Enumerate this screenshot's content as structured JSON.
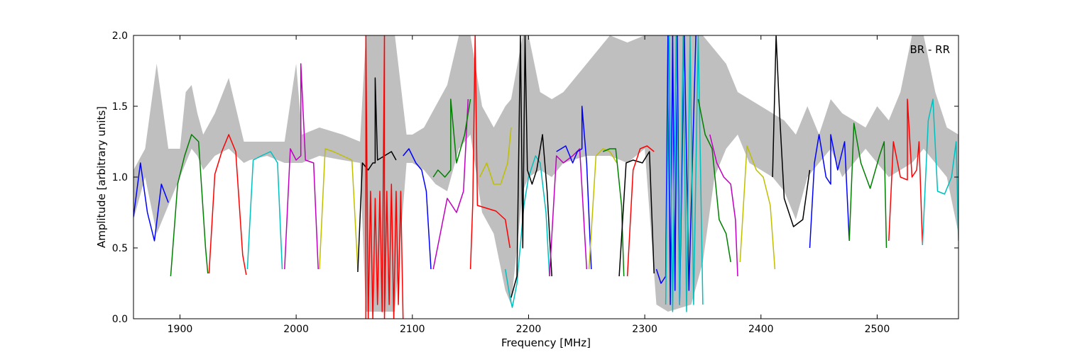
{
  "chart_data": {
    "type": "line",
    "title": "",
    "annotation": "BR - RR",
    "xlabel": "Frequency [MHz]",
    "ylabel": "Amplitude [arbitrary units]",
    "xlim": [
      1860,
      2570
    ],
    "ylim": [
      0.0,
      2.0
    ],
    "xticks": [
      1900,
      2000,
      2100,
      2200,
      2300,
      2400,
      2500
    ],
    "yticks": [
      0.0,
      0.5,
      1.0,
      1.5,
      2.0
    ],
    "xtick_labels": [
      "1900",
      "2000",
      "2100",
      "2200",
      "2300",
      "2400",
      "2500"
    ],
    "ytick_labels": [
      "0.0",
      "0.5",
      "1.0",
      "1.5",
      "2.0"
    ],
    "grid": false,
    "colors": {
      "envelope": "#bfbfbf",
      "palette": [
        "#0000ff",
        "#008000",
        "#ff0000",
        "#00bfbf",
        "#bf00bf",
        "#bfbf00",
        "#000000"
      ]
    },
    "envelope": {
      "x": [
        1860,
        1870,
        1880,
        1890,
        1900,
        1905,
        1910,
        1915,
        1920,
        1930,
        1942,
        1955,
        1960,
        1975,
        1990,
        2000,
        2005,
        2020,
        2040,
        2055,
        2060,
        2075,
        2085,
        2095,
        2100,
        2110,
        2120,
        2130,
        2140,
        2150,
        2160,
        2170,
        2180,
        2185,
        2195,
        2200,
        2210,
        2220,
        2230,
        2250,
        2270,
        2285,
        2300,
        2310,
        2320,
        2340,
        2350,
        2360,
        2370,
        2380,
        2390,
        2400,
        2410,
        2420,
        2430,
        2440,
        2450,
        2460,
        2470,
        2480,
        2490,
        2500,
        2510,
        2520,
        2530,
        2540,
        2550,
        2560,
        2570
      ],
      "lower": [
        0.7,
        1.0,
        0.6,
        0.8,
        1.0,
        1.1,
        1.2,
        1.15,
        1.05,
        1.15,
        1.2,
        1.1,
        1.12,
        1.15,
        1.1,
        1.1,
        1.1,
        1.15,
        1.12,
        1.1,
        0.05,
        0.05,
        0.05,
        1.1,
        1.1,
        1.05,
        0.95,
        0.9,
        1.2,
        1.3,
        0.75,
        0.6,
        0.2,
        0.1,
        0.9,
        1.0,
        1.05,
        1.0,
        1.1,
        1.15,
        1.15,
        1.1,
        1.2,
        0.1,
        0.05,
        0.1,
        0.4,
        1.0,
        1.2,
        1.3,
        1.1,
        1.05,
        1.0,
        0.9,
        0.7,
        1.0,
        1.1,
        1.2,
        1.0,
        1.1,
        1.2,
        1.1,
        1.0,
        1.05,
        1.1,
        1.2,
        1.1,
        1.0,
        0.6
      ],
      "upper": [
        1.05,
        1.2,
        1.8,
        1.2,
        1.2,
        1.6,
        1.65,
        1.45,
        1.3,
        1.45,
        1.7,
        1.25,
        1.25,
        1.25,
        1.25,
        1.8,
        1.3,
        1.35,
        1.3,
        1.25,
        2.0,
        2.0,
        2.0,
        1.3,
        1.3,
        1.35,
        1.5,
        1.65,
        2.0,
        2.0,
        1.5,
        1.35,
        1.5,
        1.55,
        2.0,
        2.0,
        1.6,
        1.55,
        1.6,
        1.8,
        2.0,
        1.95,
        2.0,
        2.0,
        2.0,
        2.0,
        2.0,
        1.9,
        1.8,
        1.6,
        1.55,
        1.5,
        1.45,
        1.4,
        1.3,
        1.5,
        1.3,
        1.55,
        1.45,
        1.4,
        1.35,
        1.5,
        1.4,
        1.6,
        2.0,
        2.0,
        1.6,
        1.35,
        1.3
      ]
    },
    "series": [
      {
        "color": "#0000ff",
        "x": [
          1860,
          1866,
          1872,
          1878,
          1884,
          1890
        ],
        "y": [
          0.72,
          1.1,
          0.75,
          0.55,
          0.95,
          0.82
        ]
      },
      {
        "color": "#008000",
        "x": [
          1892,
          1898,
          1904,
          1910,
          1916,
          1922,
          1924
        ],
        "y": [
          0.3,
          0.95,
          1.15,
          1.3,
          1.25,
          0.5,
          0.32
        ]
      },
      {
        "color": "#ff0000",
        "x": [
          1925,
          1930,
          1936,
          1942,
          1948,
          1954,
          1957
        ],
        "y": [
          0.32,
          1.02,
          1.18,
          1.3,
          1.18,
          0.45,
          0.31
        ]
      },
      {
        "color": "#00bfbf",
        "x": [
          1958,
          1963,
          1970,
          1978,
          1984,
          1988
        ],
        "y": [
          0.35,
          1.12,
          1.15,
          1.18,
          1.1,
          0.35
        ]
      },
      {
        "color": "#bf00bf",
        "x": [
          1990,
          1995,
          2000,
          2004,
          2004,
          2008,
          2015,
          2019
        ],
        "y": [
          0.35,
          1.2,
          1.12,
          1.15,
          1.8,
          1.12,
          1.1,
          0.35
        ]
      },
      {
        "color": "#bfbf00",
        "x": [
          2020,
          2025,
          2032,
          2040,
          2048,
          2053
        ],
        "y": [
          0.35,
          1.2,
          1.18,
          1.15,
          1.12,
          0.35
        ]
      },
      {
        "color": "#000000",
        "x": [
          2053,
          2057,
          2062,
          2066,
          2068,
          2068,
          2070,
          2076,
          2082,
          2086
        ],
        "y": [
          0.33,
          1.1,
          1.05,
          1.1,
          1.1,
          1.7,
          1.12,
          1.15,
          1.18,
          1.12
        ]
      },
      {
        "color": "#ff0000",
        "x": [
          2060,
          2060,
          2062,
          2064,
          2066,
          2068,
          2070,
          2072,
          2074,
          2076,
          2076,
          2078,
          2080,
          2082,
          2084,
          2086,
          2088,
          2090,
          2092
        ],
        "y": [
          0.0,
          2.0,
          0.0,
          0.9,
          0.0,
          0.85,
          0.1,
          0.9,
          0.05,
          2.0,
          0.0,
          0.9,
          0.1,
          0.95,
          0.0,
          0.9,
          0.1,
          0.9,
          0.0
        ]
      },
      {
        "color": "#0000ff",
        "x": [
          2092,
          2097,
          2103,
          2108,
          2112,
          2116
        ],
        "y": [
          1.15,
          1.2,
          1.1,
          1.05,
          0.9,
          0.35
        ]
      },
      {
        "color": "#bf00bf",
        "x": [
          2118,
          2124,
          2130,
          2138,
          2144,
          2148
        ],
        "y": [
          0.35,
          0.6,
          0.85,
          0.75,
          0.9,
          1.55
        ]
      },
      {
        "color": "#008000",
        "x": [
          2118,
          2122,
          2128,
          2133,
          2133,
          2138,
          2145,
          2150
        ],
        "y": [
          1.0,
          1.05,
          1.0,
          1.05,
          1.55,
          1.1,
          1.3,
          1.55
        ]
      },
      {
        "color": "#ff0000",
        "x": [
          2150,
          2152,
          2154,
          2156,
          2164,
          2172,
          2180,
          2184
        ],
        "y": [
          0.35,
          0.82,
          2.0,
          0.8,
          0.78,
          0.76,
          0.7,
          0.5
        ]
      },
      {
        "color": "#bfbf00",
        "x": [
          2158,
          2164,
          2170,
          2176,
          2182,
          2185
        ],
        "y": [
          1.0,
          1.1,
          0.95,
          0.95,
          1.1,
          1.35
        ]
      },
      {
        "color": "#00bfbf",
        "x": [
          2180,
          2184,
          2186,
          2190,
          2196,
          2200,
          2206,
          2210,
          2215,
          2218
        ],
        "y": [
          0.35,
          0.15,
          0.08,
          0.25,
          0.8,
          1.0,
          1.15,
          1.1,
          0.75,
          0.3
        ]
      },
      {
        "color": "#000000",
        "x": [
          2185,
          2190,
          2193,
          2195,
          2197,
          2199,
          2203,
          2207,
          2212,
          2216,
          2220
        ],
        "y": [
          0.15,
          0.3,
          2.0,
          0.5,
          2.0,
          1.05,
          0.95,
          1.05,
          1.3,
          0.9,
          0.3
        ]
      },
      {
        "color": "#bf00bf",
        "x": [
          2218,
          2224,
          2230,
          2238,
          2244,
          2250
        ],
        "y": [
          0.3,
          1.15,
          1.1,
          1.15,
          1.2,
          0.35
        ]
      },
      {
        "color": "#0000ff",
        "x": [
          2224,
          2232,
          2238,
          2242,
          2246,
          2246,
          2250,
          2254
        ],
        "y": [
          1.18,
          1.22,
          1.1,
          1.18,
          1.2,
          1.5,
          1.1,
          0.35
        ]
      },
      {
        "color": "#bfbf00",
        "x": [
          2252,
          2258,
          2264,
          2270,
          2276
        ],
        "y": [
          0.35,
          1.15,
          1.2,
          1.18,
          1.1
        ]
      },
      {
        "color": "#008000",
        "x": [
          2264,
          2270,
          2275,
          2280,
          2282
        ],
        "y": [
          1.18,
          1.2,
          1.2,
          0.8,
          0.3
        ]
      },
      {
        "color": "#000000",
        "x": [
          2278,
          2284,
          2290,
          2298,
          2304,
          2308
        ],
        "y": [
          0.3,
          1.1,
          1.12,
          1.1,
          1.18,
          0.32
        ]
      },
      {
        "color": "#ff0000",
        "x": [
          2285,
          2290,
          2296,
          2302,
          2308
        ],
        "y": [
          0.3,
          1.05,
          1.2,
          1.22,
          1.18
        ]
      },
      {
        "color": "#0000ff",
        "x": [
          2310,
          2314,
          2318,
          2320,
          2322,
          2324,
          2326,
          2328,
          2330,
          2334,
          2338,
          2344
        ],
        "y": [
          0.35,
          0.25,
          0.3,
          2.0,
          0.1,
          2.0,
          0.2,
          2.0,
          0.1,
          2.0,
          0.2,
          2.0
        ]
      },
      {
        "color": "#00bfbf",
        "x": [
          2318,
          2321,
          2324,
          2327,
          2330,
          2333,
          2336,
          2339,
          2342,
          2346,
          2350
        ],
        "y": [
          0.1,
          2.0,
          0.05,
          2.0,
          0.1,
          2.0,
          0.05,
          2.0,
          0.1,
          2.0,
          0.1
        ]
      },
      {
        "color": "#008000",
        "x": [
          2346,
          2352,
          2358,
          2364,
          2370,
          2374
        ],
        "y": [
          1.55,
          1.3,
          1.2,
          0.7,
          0.6,
          0.4
        ]
      },
      {
        "color": "#bf00bf",
        "x": [
          2356,
          2362,
          2368,
          2374,
          2378,
          2380
        ],
        "y": [
          1.3,
          1.1,
          1.0,
          0.95,
          0.7,
          0.3
        ]
      },
      {
        "color": "#bfbf00",
        "x": [
          2382,
          2388,
          2396,
          2402,
          2408,
          2412
        ],
        "y": [
          0.4,
          1.22,
          1.05,
          1.0,
          0.8,
          0.35
        ]
      },
      {
        "color": "#000000",
        "x": [
          2410,
          2413,
          2416,
          2420,
          2428,
          2436,
          2442
        ],
        "y": [
          1.0,
          2.0,
          1.45,
          0.85,
          0.65,
          0.7,
          1.05
        ]
      },
      {
        "color": "#0000ff",
        "x": [
          2442,
          2446,
          2450,
          2456,
          2460,
          2460,
          2466,
          2472,
          2476
        ],
        "y": [
          0.5,
          1.1,
          1.3,
          1.0,
          0.95,
          1.3,
          1.05,
          1.25,
          0.55
        ]
      },
      {
        "color": "#008000",
        "x": [
          2476,
          2480,
          2486,
          2494,
          2502,
          2506,
          2508
        ],
        "y": [
          0.55,
          1.38,
          1.1,
          0.92,
          1.15,
          1.25,
          0.5
        ]
      },
      {
        "color": "#ff0000",
        "x": [
          2510,
          2514,
          2520,
          2526,
          2526,
          2530,
          2534,
          2536,
          2539
        ],
        "y": [
          0.55,
          1.25,
          1.0,
          0.98,
          1.55,
          1.0,
          1.05,
          1.25,
          0.52
        ]
      },
      {
        "color": "#00bfbf",
        "x": [
          2539,
          2544,
          2548,
          2552,
          2558,
          2564,
          2568,
          2570
        ],
        "y": [
          0.52,
          1.4,
          1.55,
          0.9,
          0.88,
          1.0,
          1.25,
          0.55
        ]
      }
    ]
  }
}
